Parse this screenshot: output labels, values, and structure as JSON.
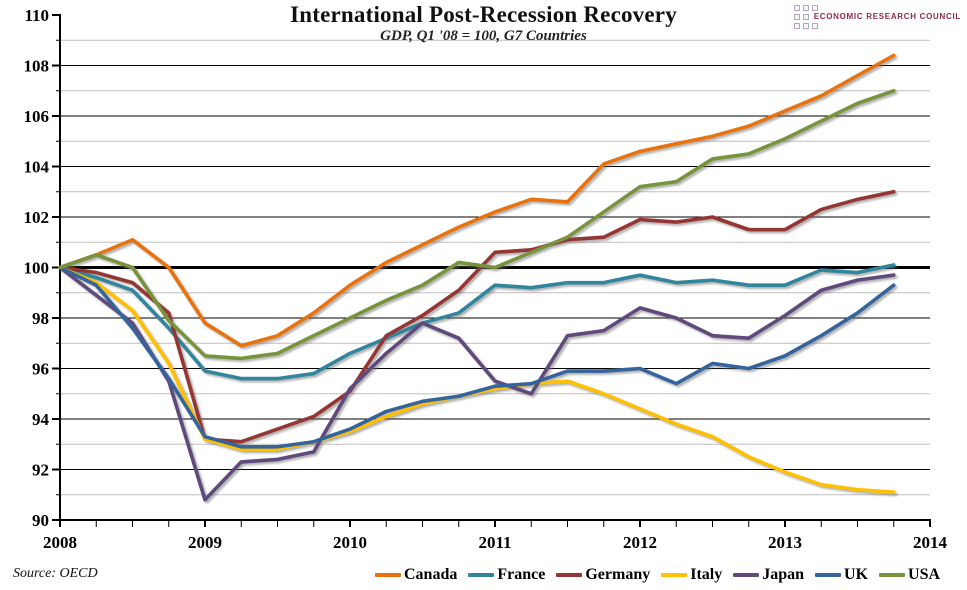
{
  "header": {
    "title": "International Post-Recession Recovery",
    "subtitle": "GDP, Q1 '08 = 100, G7 Countries"
  },
  "logo": {
    "text": "ECONOMIC RESEARCH COUNCIL",
    "text_color": "#8e2c49"
  },
  "source": {
    "label": "Source: OECD"
  },
  "chart_data": {
    "type": "line",
    "title": "International Post-Recession Recovery",
    "subtitle": "GDP, Q1 '08 = 100, G7 Countries",
    "xlabel": "",
    "ylabel": "",
    "ylim": [
      90,
      110
    ],
    "y_major_step": 2,
    "y_tick_labels": [
      90,
      92,
      94,
      96,
      98,
      100,
      102,
      104,
      106,
      108,
      110
    ],
    "x_tick_labels": [
      2008,
      2009,
      2010,
      2011,
      2012,
      2013,
      2014
    ],
    "baseline_value": 100,
    "grid": "on",
    "legend_position": "bottom",
    "x": [
      "2008 Q1",
      "2008 Q2",
      "2008 Q3",
      "2008 Q4",
      "2009 Q1",
      "2009 Q2",
      "2009 Q3",
      "2009 Q4",
      "2010 Q1",
      "2010 Q2",
      "2010 Q3",
      "2010 Q4",
      "2011 Q1",
      "2011 Q2",
      "2011 Q3",
      "2011 Q4",
      "2012 Q1",
      "2012 Q2",
      "2012 Q3",
      "2012 Q4",
      "2013 Q1",
      "2013 Q2",
      "2013 Q3",
      "2013 Q4"
    ],
    "series": [
      {
        "name": "Canada",
        "color": "#e8720e",
        "values": [
          100,
          100.5,
          101.1,
          100.0,
          97.8,
          96.9,
          97.3,
          98.2,
          99.3,
          100.2,
          100.9,
          101.6,
          102.2,
          102.7,
          102.6,
          104.1,
          104.6,
          104.9,
          105.2,
          105.6,
          106.2,
          106.8,
          107.6,
          108.4
        ]
      },
      {
        "name": "France",
        "color": "#31859c",
        "values": [
          100,
          99.6,
          99.1,
          97.6,
          95.9,
          95.6,
          95.6,
          95.8,
          96.6,
          97.2,
          97.8,
          98.2,
          99.3,
          99.2,
          99.4,
          99.4,
          99.7,
          99.4,
          99.5,
          99.3,
          99.3,
          99.9,
          99.8,
          100.1
        ]
      },
      {
        "name": "Germany",
        "color": "#943634",
        "values": [
          100,
          99.8,
          99.4,
          98.2,
          93.2,
          93.1,
          93.6,
          94.1,
          95.1,
          97.3,
          98.1,
          99.1,
          100.6,
          100.7,
          101.1,
          101.2,
          101.9,
          101.8,
          102.0,
          101.5,
          101.5,
          102.3,
          102.7,
          103.0
        ]
      },
      {
        "name": "Italy",
        "color": "#fec000",
        "values": [
          100,
          99.4,
          98.3,
          96.2,
          93.2,
          92.8,
          92.8,
          93.1,
          93.5,
          94.1,
          94.6,
          94.9,
          95.2,
          95.4,
          95.5,
          95.0,
          94.4,
          93.8,
          93.3,
          92.5,
          91.9,
          91.4,
          91.2,
          91.1
        ]
      },
      {
        "name": "Japan",
        "color": "#604a7b",
        "values": [
          100,
          98.9,
          97.8,
          95.5,
          90.8,
          92.3,
          92.4,
          92.7,
          95.2,
          96.6,
          97.8,
          97.2,
          95.5,
          95.0,
          97.3,
          97.5,
          98.4,
          98.0,
          97.3,
          97.2,
          98.1,
          99.1,
          99.5,
          99.7
        ]
      },
      {
        "name": "UK",
        "color": "#35639b",
        "values": [
          100,
          99.3,
          97.6,
          95.6,
          93.3,
          92.9,
          92.9,
          93.1,
          93.6,
          94.3,
          94.7,
          94.9,
          95.3,
          95.4,
          95.9,
          95.9,
          96.0,
          95.4,
          96.2,
          96.0,
          96.5,
          97.3,
          98.2,
          99.3
        ]
      },
      {
        "name": "USA",
        "color": "#77933c",
        "values": [
          100,
          100.5,
          100.0,
          97.9,
          96.5,
          96.4,
          96.6,
          97.3,
          98.0,
          98.7,
          99.3,
          100.2,
          100.0,
          100.6,
          101.2,
          102.2,
          103.2,
          103.4,
          104.3,
          104.5,
          105.1,
          105.8,
          106.5,
          107.0
        ]
      }
    ]
  }
}
